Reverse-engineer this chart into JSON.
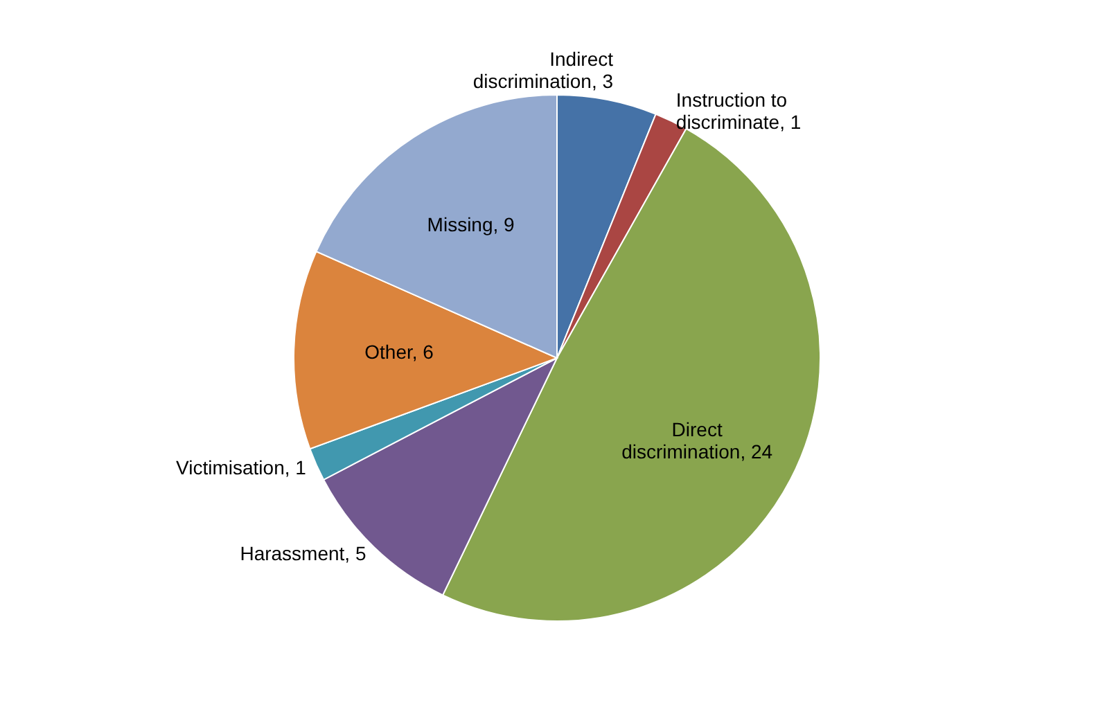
{
  "chart_data": {
    "type": "pie",
    "categories": [
      null,
      null,
      null,
      null,
      null,
      null,
      null
    ],
    "values": [
      3,
      1,
      24,
      5,
      1,
      6,
      9
    ],
    "value_labels": [
      "Indirect discrimination, 3",
      "Instruction to discriminate, 1",
      "Direct discrimination, 24",
      "Harassment, 5",
      "Victimisation, 1",
      "Other, 6",
      "Missing, 9"
    ],
    "colors": [
      "#4572a7",
      "#aa4643",
      "#89a54e",
      "#71588f",
      "#4198af",
      "#db843d",
      "#93a9cf"
    ],
    "legend": false
  }
}
